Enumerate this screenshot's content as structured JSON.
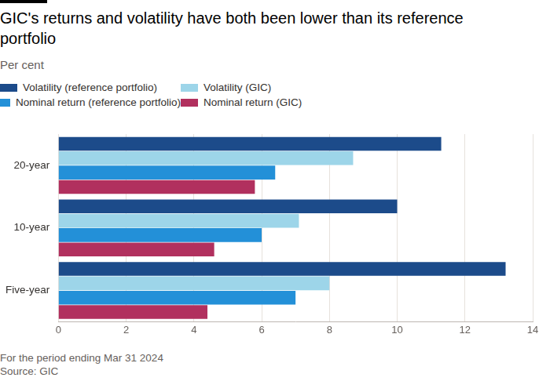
{
  "chart_data": {
    "type": "bar",
    "orientation": "horizontal",
    "title": "GIC's returns and volatility have both been lower than its reference portfolio",
    "subtitle": "Per cent",
    "note": "For the period ending Mar 31 2024",
    "source": "Source: GIC",
    "categories": [
      "20-year",
      "10-year",
      "Five-year"
    ],
    "series": [
      {
        "name": "Volatility (reference portfolio)",
        "color": "#1c4b8a",
        "values": [
          11.3,
          10.0,
          13.2
        ]
      },
      {
        "name": "Volatility (GIC)",
        "color": "#9dd5e9",
        "values": [
          8.7,
          7.1,
          8.0
        ]
      },
      {
        "name": "Nominal return (reference portfolio)",
        "color": "#2390d8",
        "values": [
          6.4,
          6.0,
          7.0
        ]
      },
      {
        "name": "Nominal return (GIC)",
        "color": "#b1305e",
        "values": [
          5.8,
          4.6,
          4.4
        ]
      }
    ],
    "xlim": [
      0,
      14
    ],
    "xticks": [
      0,
      2,
      4,
      6,
      8,
      10,
      12,
      14
    ],
    "grid": true,
    "legend": "top-left"
  }
}
